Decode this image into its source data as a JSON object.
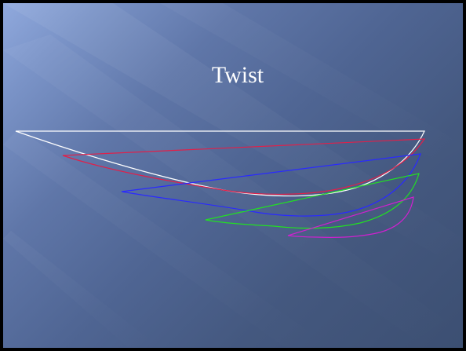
{
  "slide": {
    "title": "Twist"
  },
  "colors": {
    "background_light": "#90a9dd",
    "background_dark": "#3c4f72",
    "title_text": "#ffffff",
    "profile_1": "#ffffff",
    "profile_2": "#e0204a",
    "profile_3": "#2a2aff",
    "profile_4": "#22e022",
    "profile_5": "#d020d0"
  },
  "diagram": {
    "profiles": [
      "profile-white",
      "profile-red",
      "profile-blue",
      "profile-green",
      "profile-magenta"
    ]
  }
}
